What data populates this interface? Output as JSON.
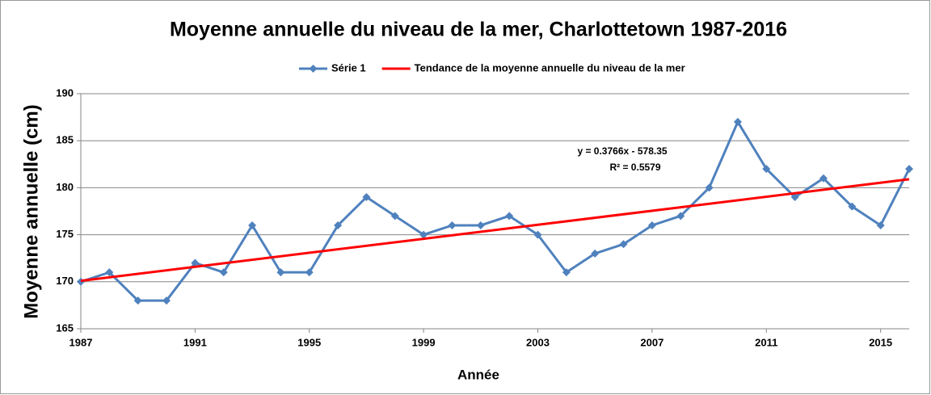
{
  "chart_data": {
    "type": "line",
    "title": "Moyenne annuelle du niveau de la mer, Charlottetown 1987-2016",
    "x_label": "Année",
    "y_label": "Moyenne annuelle (cm)",
    "x": [
      1987,
      1988,
      1989,
      1990,
      1991,
      1992,
      1993,
      1994,
      1995,
      1996,
      1997,
      1998,
      1999,
      2000,
      2001,
      2002,
      2003,
      2004,
      2005,
      2006,
      2007,
      2008,
      2009,
      2010,
      2011,
      2012,
      2013,
      2014,
      2015,
      2016
    ],
    "series": [
      {
        "name": "Série 1",
        "color": "#4f81bd",
        "values": [
          170,
          171,
          168,
          168,
          172,
          171,
          176,
          171,
          171,
          176,
          179,
          177,
          175,
          176,
          176,
          177,
          175,
          171,
          173,
          174,
          176,
          177,
          180,
          187,
          182,
          179,
          181,
          178,
          176,
          182
        ]
      },
      {
        "name": "Tendance de la moyenne annuelle du niveau de la mer",
        "color": "#ff0000",
        "x": [
          1987,
          2016
        ],
        "values": [
          170.1,
          180.9
        ]
      }
    ],
    "annotations": [
      "y = 0.3766x  - 578.35",
      "R² = 0.5579"
    ],
    "xlim": [
      1987,
      2016
    ],
    "xticks": [
      1987,
      1991,
      1995,
      1999,
      2003,
      2007,
      2011,
      2015
    ],
    "ylim": [
      165,
      190
    ],
    "yticks": [
      165,
      170,
      175,
      180,
      185,
      190
    ],
    "grid": true,
    "legend": "top"
  }
}
